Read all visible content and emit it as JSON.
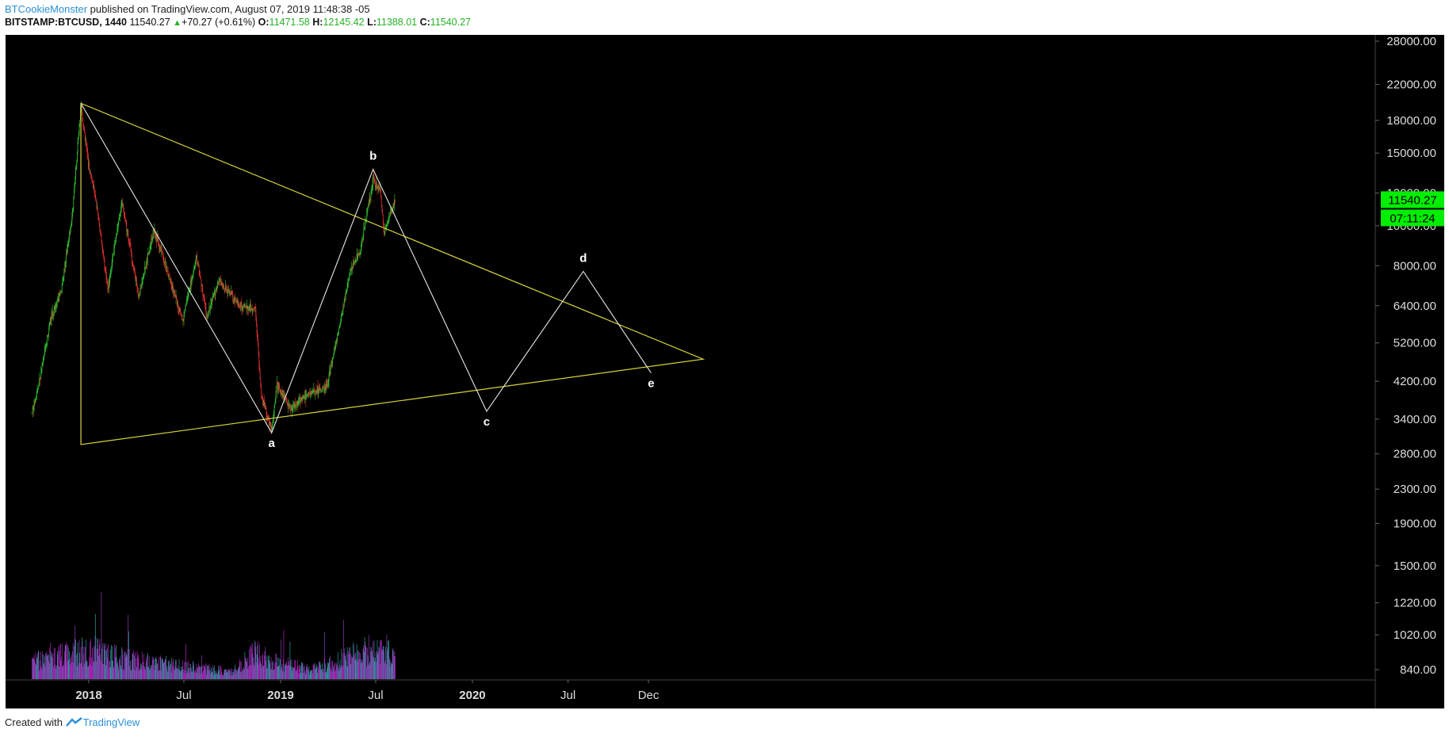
{
  "header": {
    "author": "BTCookieMonster",
    "published_text": "published on TradingView.com, August 07, 2019 11:48:38 -05",
    "symbol": "BITSTAMP:BTCUSD, 1440",
    "last": "11540.27",
    "change_arrow": "▲",
    "change": "+70.27 (+0.61%)",
    "open_label": "O:",
    "open": "11471.58",
    "high_label": "H:",
    "high": "12145.42",
    "low_label": "L:",
    "low": "11388.01",
    "close_label": "C:",
    "close": "11540.27"
  },
  "footer": {
    "created_with": "Created with",
    "brand": "TradingView",
    "logo_icon": "tradingview-logo-icon"
  },
  "colors": {
    "background": "#000000",
    "candle_up": "#2fbf2f",
    "candle_down": "#e03030",
    "volume": [
      "#c020c8",
      "#2aa6a6",
      "#8f3fbf"
    ],
    "triangle": "#d8d43a",
    "wave": "#e8e8e8",
    "price_badge": "#00ee00"
  },
  "chart_data": {
    "type": "candlestick",
    "y_scale": "log",
    "ylim": [
      800,
      30000
    ],
    "price_axis_ticks": [
      "28000.00",
      "22000.00",
      "18000.00",
      "15000.00",
      "12000.00",
      "10000.00",
      "8000.00",
      "6400.00",
      "5200.00",
      "4200.00",
      "3400.00",
      "2800.00",
      "2300.00",
      "1900.00",
      "1500.00",
      "1220.00",
      "1020.00",
      "840.00"
    ],
    "time_axis_labels": [
      "2018",
      "Jul",
      "2019",
      "Jul",
      "2020",
      "Jul",
      "Dec"
    ],
    "current_price_label": "11540.27",
    "countdown_label": "07:11:24",
    "price_path": [
      [
        "2017-09-15",
        3500
      ],
      [
        "2017-10-01",
        4300
      ],
      [
        "2017-10-20",
        5900
      ],
      [
        "2017-11-10",
        7000
      ],
      [
        "2017-11-30",
        10500
      ],
      [
        "2017-12-17",
        19500
      ],
      [
        "2018-01-01",
        14000
      ],
      [
        "2018-01-15",
        11500
      ],
      [
        "2018-02-06",
        7000
      ],
      [
        "2018-03-05",
        11500
      ],
      [
        "2018-04-06",
        6700
      ],
      [
        "2018-05-05",
        9800
      ],
      [
        "2018-06-29",
        5900
      ],
      [
        "2018-07-25",
        8400
      ],
      [
        "2018-08-14",
        6000
      ],
      [
        "2018-09-05",
        7400
      ],
      [
        "2018-10-15",
        6400
      ],
      [
        "2018-11-14",
        6300
      ],
      [
        "2018-11-25",
        3900
      ],
      [
        "2018-12-15",
        3200
      ],
      [
        "2018-12-25",
        4100
      ],
      [
        "2019-01-20",
        3600
      ],
      [
        "2019-02-20",
        3900
      ],
      [
        "2019-03-31",
        4100
      ],
      [
        "2019-04-15",
        5100
      ],
      [
        "2019-05-15",
        7900
      ],
      [
        "2019-06-01",
        8600
      ],
      [
        "2019-06-26",
        13000
      ],
      [
        "2019-07-10",
        12000
      ],
      [
        "2019-07-17",
        9600
      ],
      [
        "2019-08-07",
        11540
      ]
    ],
    "volume_levels": [
      [
        "2017-09-15",
        0.18
      ],
      [
        "2017-12-10",
        0.28
      ],
      [
        "2018-01-15",
        0.3
      ],
      [
        "2018-03-01",
        0.22
      ],
      [
        "2018-06-01",
        0.15
      ],
      [
        "2018-10-01",
        0.08
      ],
      [
        "2018-11-20",
        0.3
      ],
      [
        "2018-12-25",
        0.18
      ],
      [
        "2019-03-01",
        0.1
      ],
      [
        "2019-05-15",
        0.24
      ],
      [
        "2019-07-01",
        0.32
      ],
      [
        "2019-08-07",
        0.3
      ]
    ],
    "triangle": [
      {
        "date": "2017-12-17",
        "price": 19800
      },
      {
        "date": "2017-12-17",
        "price": 2950
      },
      {
        "date": "2021-03-15",
        "price": 4750
      }
    ],
    "wave_points": [
      {
        "label": "",
        "date": "2017-12-17",
        "price": 19800
      },
      {
        "label": "a",
        "date": "2018-12-15",
        "price": 3150
      },
      {
        "label": "b",
        "date": "2019-06-26",
        "price": 13700
      },
      {
        "label": "c",
        "date": "2020-01-28",
        "price": 3550
      },
      {
        "label": "d",
        "date": "2020-07-30",
        "price": 7750
      },
      {
        "label": "e",
        "date": "2020-12-06",
        "price": 4400
      }
    ]
  }
}
